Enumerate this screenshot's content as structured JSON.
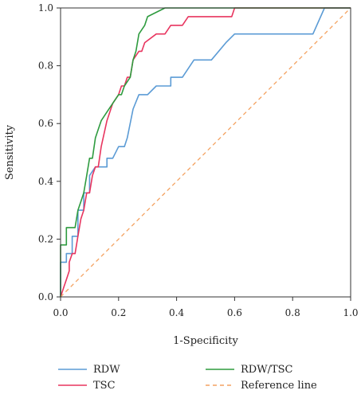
{
  "chart_data": {
    "type": "line",
    "title": "",
    "xlabel": "1-Specificity",
    "ylabel": "Sensitivity",
    "xlim": [
      0,
      1
    ],
    "ylim": [
      0,
      1
    ],
    "xticks": [
      "0.0",
      "0.2",
      "0.4",
      "0.6",
      "0.8",
      "1.0"
    ],
    "yticks": [
      "0.0",
      "0.2",
      "0.4",
      "0.6",
      "0.8",
      "1.0"
    ],
    "grid": false,
    "legend": "bottom",
    "series": [
      {
        "name": "RDW",
        "color": "#5b9bd5",
        "dash": "",
        "points": [
          [
            0,
            0
          ],
          [
            0,
            0.12
          ],
          [
            0.02,
            0.12
          ],
          [
            0.02,
            0.15
          ],
          [
            0.04,
            0.15
          ],
          [
            0.04,
            0.21
          ],
          [
            0.06,
            0.21
          ],
          [
            0.06,
            0.3
          ],
          [
            0.08,
            0.3
          ],
          [
            0.08,
            0.36
          ],
          [
            0.1,
            0.36
          ],
          [
            0.1,
            0.42
          ],
          [
            0.12,
            0.45
          ],
          [
            0.16,
            0.45
          ],
          [
            0.16,
            0.48
          ],
          [
            0.18,
            0.48
          ],
          [
            0.2,
            0.52
          ],
          [
            0.22,
            0.52
          ],
          [
            0.23,
            0.55
          ],
          [
            0.25,
            0.65
          ],
          [
            0.27,
            0.7
          ],
          [
            0.3,
            0.7
          ],
          [
            0.33,
            0.73
          ],
          [
            0.38,
            0.73
          ],
          [
            0.38,
            0.76
          ],
          [
            0.42,
            0.76
          ],
          [
            0.46,
            0.82
          ],
          [
            0.52,
            0.82
          ],
          [
            0.57,
            0.88
          ],
          [
            0.6,
            0.91
          ],
          [
            0.87,
            0.91
          ],
          [
            0.91,
            1.0
          ],
          [
            1.0,
            1.0
          ]
        ]
      },
      {
        "name": "TSC",
        "color": "#e8355f",
        "dash": "",
        "points": [
          [
            0,
            0
          ],
          [
            0.01,
            0.03
          ],
          [
            0.02,
            0.06
          ],
          [
            0.03,
            0.09
          ],
          [
            0.03,
            0.12
          ],
          [
            0.04,
            0.15
          ],
          [
            0.05,
            0.15
          ],
          [
            0.06,
            0.21
          ],
          [
            0.07,
            0.27
          ],
          [
            0.08,
            0.3
          ],
          [
            0.09,
            0.36
          ],
          [
            0.1,
            0.36
          ],
          [
            0.11,
            0.42
          ],
          [
            0.12,
            0.45
          ],
          [
            0.13,
            0.45
          ],
          [
            0.14,
            0.52
          ],
          [
            0.16,
            0.61
          ],
          [
            0.18,
            0.67
          ],
          [
            0.2,
            0.7
          ],
          [
            0.21,
            0.73
          ],
          [
            0.22,
            0.73
          ],
          [
            0.23,
            0.76
          ],
          [
            0.24,
            0.76
          ],
          [
            0.25,
            0.82
          ],
          [
            0.27,
            0.85
          ],
          [
            0.28,
            0.85
          ],
          [
            0.29,
            0.88
          ],
          [
            0.33,
            0.91
          ],
          [
            0.36,
            0.91
          ],
          [
            0.38,
            0.94
          ],
          [
            0.42,
            0.94
          ],
          [
            0.44,
            0.97
          ],
          [
            0.59,
            0.97
          ],
          [
            0.6,
            1.0
          ],
          [
            1.0,
            1.0
          ]
        ]
      },
      {
        "name": "RDW/TSC",
        "color": "#2e9b3f",
        "dash": "",
        "points": [
          [
            0,
            0
          ],
          [
            0,
            0.18
          ],
          [
            0.02,
            0.18
          ],
          [
            0.02,
            0.24
          ],
          [
            0.05,
            0.24
          ],
          [
            0.06,
            0.3
          ],
          [
            0.07,
            0.33
          ],
          [
            0.08,
            0.36
          ],
          [
            0.09,
            0.42
          ],
          [
            0.1,
            0.48
          ],
          [
            0.11,
            0.48
          ],
          [
            0.12,
            0.55
          ],
          [
            0.13,
            0.58
          ],
          [
            0.14,
            0.61
          ],
          [
            0.16,
            0.64
          ],
          [
            0.18,
            0.67
          ],
          [
            0.2,
            0.7
          ],
          [
            0.21,
            0.7
          ],
          [
            0.22,
            0.73
          ],
          [
            0.24,
            0.76
          ],
          [
            0.25,
            0.82
          ],
          [
            0.26,
            0.85
          ],
          [
            0.27,
            0.91
          ],
          [
            0.29,
            0.94
          ],
          [
            0.3,
            0.97
          ],
          [
            0.36,
            1.0
          ],
          [
            1.0,
            1.0
          ]
        ]
      },
      {
        "name": "Reference line",
        "color": "#f4a261",
        "dash": "5,4",
        "points": [
          [
            0,
            0
          ],
          [
            1,
            1
          ]
        ]
      }
    ]
  }
}
